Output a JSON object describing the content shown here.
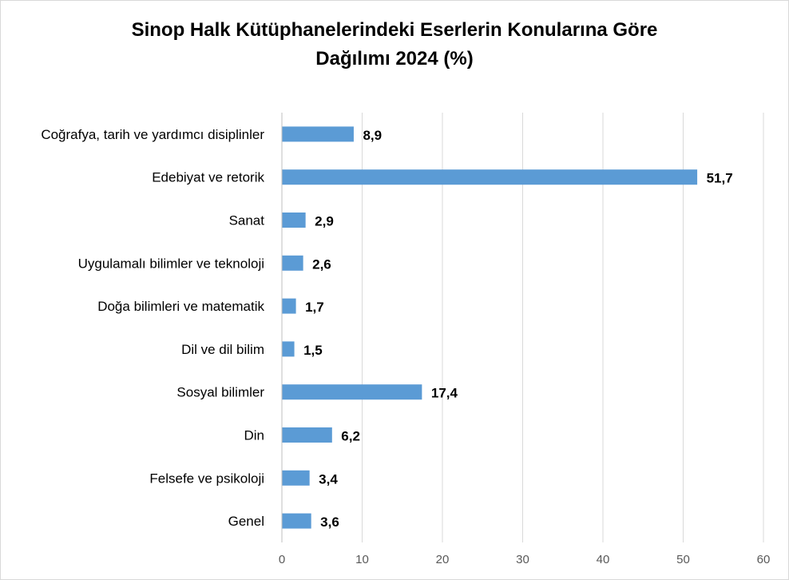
{
  "chart_data": {
    "type": "bar",
    "orientation": "horizontal",
    "title_lines": [
      "Sinop Halk Kütüphanelerindeki Eserlerin Konularına Göre",
      "Dağılımı 2024 (%)"
    ],
    "categories": [
      "Coğrafya, tarih ve yardımcı disiplinler",
      "Edebiyat ve retorik",
      "Sanat",
      "Uygulamalı bilimler ve teknoloji",
      "Doğa bilimleri ve matematik",
      "Dil ve dil bilim",
      "Sosyal bilimler",
      "Din",
      "Felsefe ve psikoloji",
      "Genel"
    ],
    "values": [
      8.9,
      51.7,
      2.9,
      2.6,
      1.7,
      1.5,
      17.4,
      6.2,
      3.4,
      3.6
    ],
    "value_labels": [
      "8,9",
      "51,7",
      "2,9",
      "2,6",
      "1,7",
      "1,5",
      "17,4",
      "6,2",
      "3,4",
      "3,6"
    ],
    "xlim": [
      0,
      60
    ],
    "x_ticks": [
      0,
      10,
      20,
      30,
      40,
      50,
      60
    ],
    "grid": true,
    "legend": "none",
    "bar_color": "#5b9bd5"
  }
}
